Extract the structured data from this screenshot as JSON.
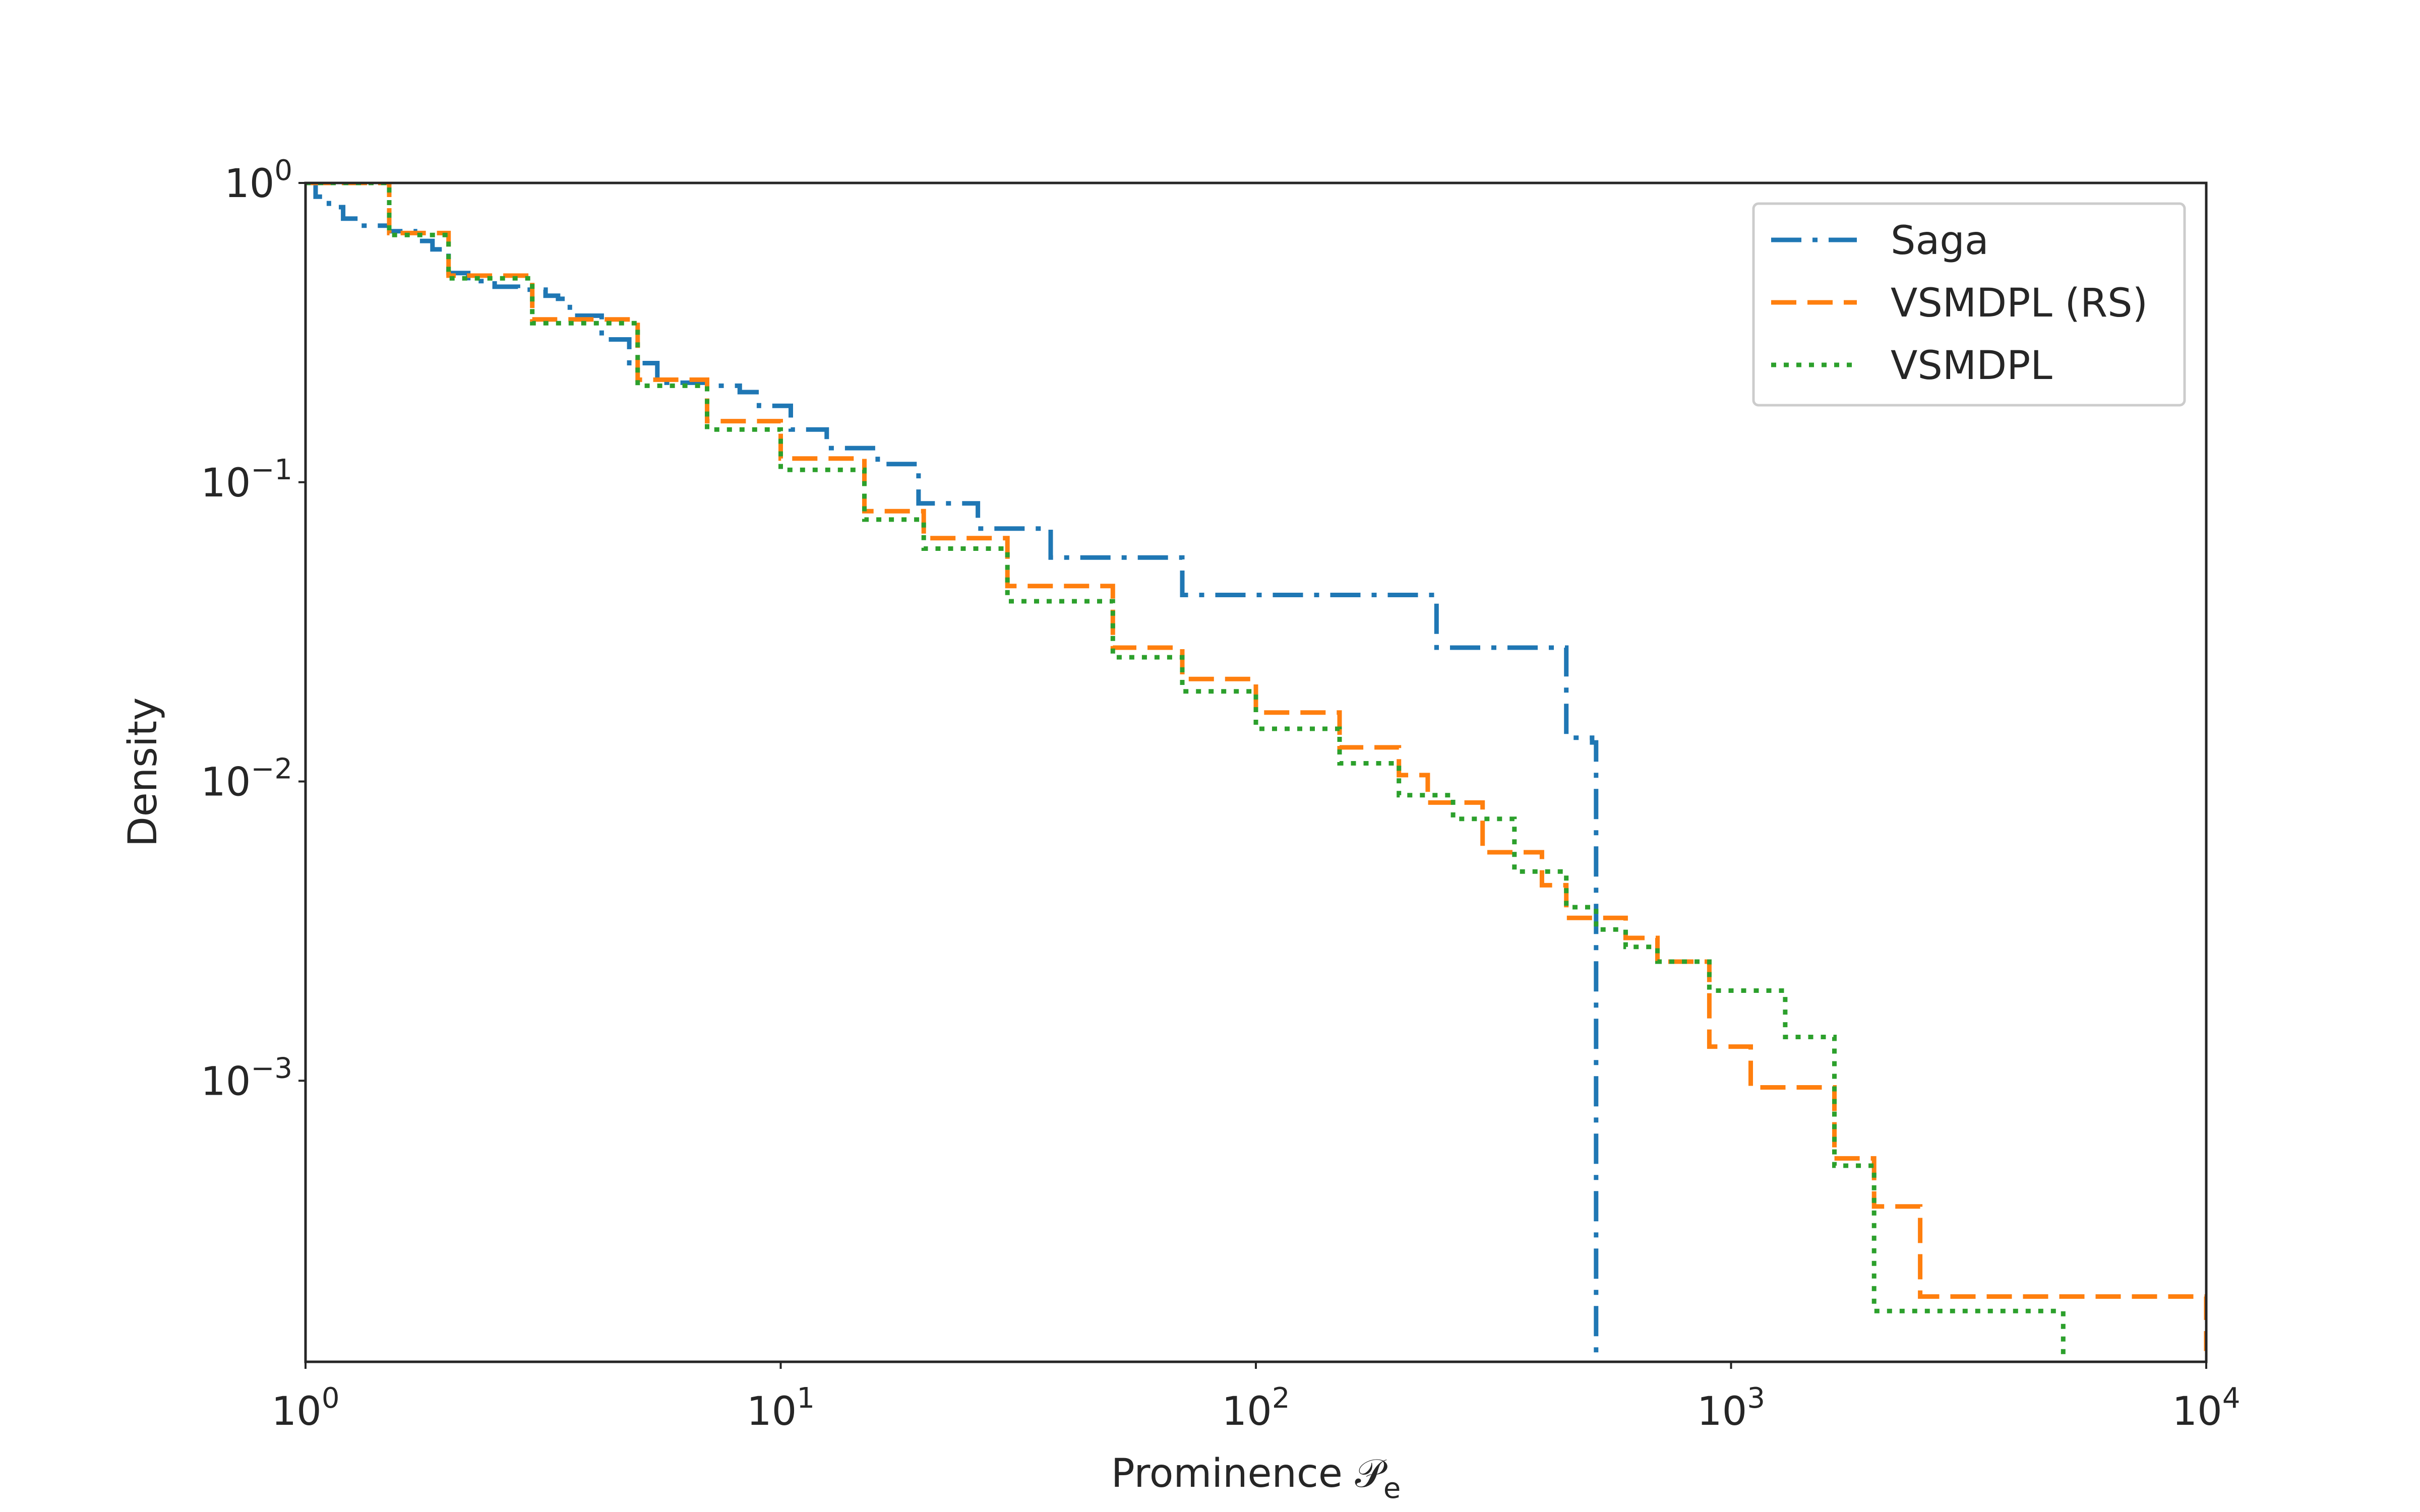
{
  "chart_data": {
    "type": "line",
    "title": "",
    "xlabel": "Prominence 𝒫",
    "xlabel_sub": "e",
    "ylabel": "Density",
    "xscale": "log",
    "yscale": "log",
    "xlim": [
      1,
      10000
    ],
    "ylim": [
      0.000115,
      1
    ],
    "grid": false,
    "legend_position": "upper-right",
    "x_ticks": [
      {
        "base": "10",
        "exp": "0",
        "value": 1
      },
      {
        "base": "10",
        "exp": "1",
        "value": 10
      },
      {
        "base": "10",
        "exp": "2",
        "value": 100
      },
      {
        "base": "10",
        "exp": "3",
        "value": 1000
      },
      {
        "base": "10",
        "exp": "4",
        "value": 10000
      }
    ],
    "y_ticks": [
      {
        "base": "10",
        "exp": "0",
        "value": 1
      },
      {
        "base": "10",
        "exp": "−1",
        "value": 0.1
      },
      {
        "base": "10",
        "exp": "−2",
        "value": 0.01
      },
      {
        "base": "10",
        "exp": "−3",
        "value": 0.001
      }
    ],
    "series": [
      {
        "name": "Saga",
        "color": "#1f77b4",
        "dash": "dashdot",
        "x": [
          1.0,
          1.05,
          1.12,
          1.2,
          1.3,
          1.5,
          1.7,
          1.85,
          2.0,
          2.2,
          2.5,
          2.8,
          3.2,
          3.4,
          3.6,
          4.2,
          4.8,
          5.5,
          7.0,
          8.2,
          9.0,
          10.5,
          12.5,
          16.0,
          19.5,
          26.0,
          37.0,
          70.0,
          240.0,
          450.0,
          510.0,
          520.0
        ],
        "y": [
          1.0,
          0.9,
          0.83,
          0.76,
          0.72,
          0.69,
          0.64,
          0.6,
          0.5,
          0.47,
          0.45,
          0.44,
          0.42,
          0.41,
          0.36,
          0.3,
          0.25,
          0.215,
          0.21,
          0.2,
          0.18,
          0.15,
          0.13,
          0.115,
          0.085,
          0.07,
          0.056,
          0.042,
          0.028,
          0.014,
          0.0135,
          0.000115
        ]
      },
      {
        "name": "VSMDPL (RS)",
        "color": "#ff7f0e",
        "dash": "dashed",
        "x": [
          1.0,
          1.5,
          2.0,
          3.0,
          5.0,
          7.0,
          10.0,
          15.0,
          20.0,
          30.0,
          50.0,
          70.0,
          100.0,
          150.0,
          200.0,
          230.0,
          300.0,
          400.0,
          450.0,
          600.0,
          700.0,
          900.0,
          1100.0,
          1650.0,
          2000.0,
          2500.0,
          10000.0
        ],
        "y": [
          1.0,
          0.68,
          0.49,
          0.35,
          0.22,
          0.16,
          0.12,
          0.08,
          0.065,
          0.045,
          0.028,
          0.022,
          0.017,
          0.013,
          0.0105,
          0.0085,
          0.0058,
          0.0045,
          0.0035,
          0.003,
          0.0025,
          0.0013,
          0.00095,
          0.00055,
          0.00038,
          0.00019,
          0.000125
        ]
      },
      {
        "name": "VSMDPL",
        "color": "#2ca02c",
        "dash": "dotted",
        "x": [
          1.0,
          1.5,
          2.0,
          3.0,
          5.0,
          7.0,
          10.0,
          15.0,
          20.0,
          30.0,
          50.0,
          70.0,
          100.0,
          150.0,
          200.0,
          260.0,
          350.0,
          450.0,
          520.0,
          600.0,
          700.0,
          900.0,
          1300.0,
          1650.0,
          2000.0,
          5000.0
        ],
        "y": [
          1.0,
          0.67,
          0.48,
          0.34,
          0.21,
          0.15,
          0.11,
          0.075,
          0.06,
          0.04,
          0.026,
          0.02,
          0.015,
          0.0115,
          0.009,
          0.0075,
          0.005,
          0.0038,
          0.0032,
          0.0028,
          0.0025,
          0.002,
          0.0014,
          0.00052,
          0.00017,
          0.000115
        ]
      }
    ]
  }
}
